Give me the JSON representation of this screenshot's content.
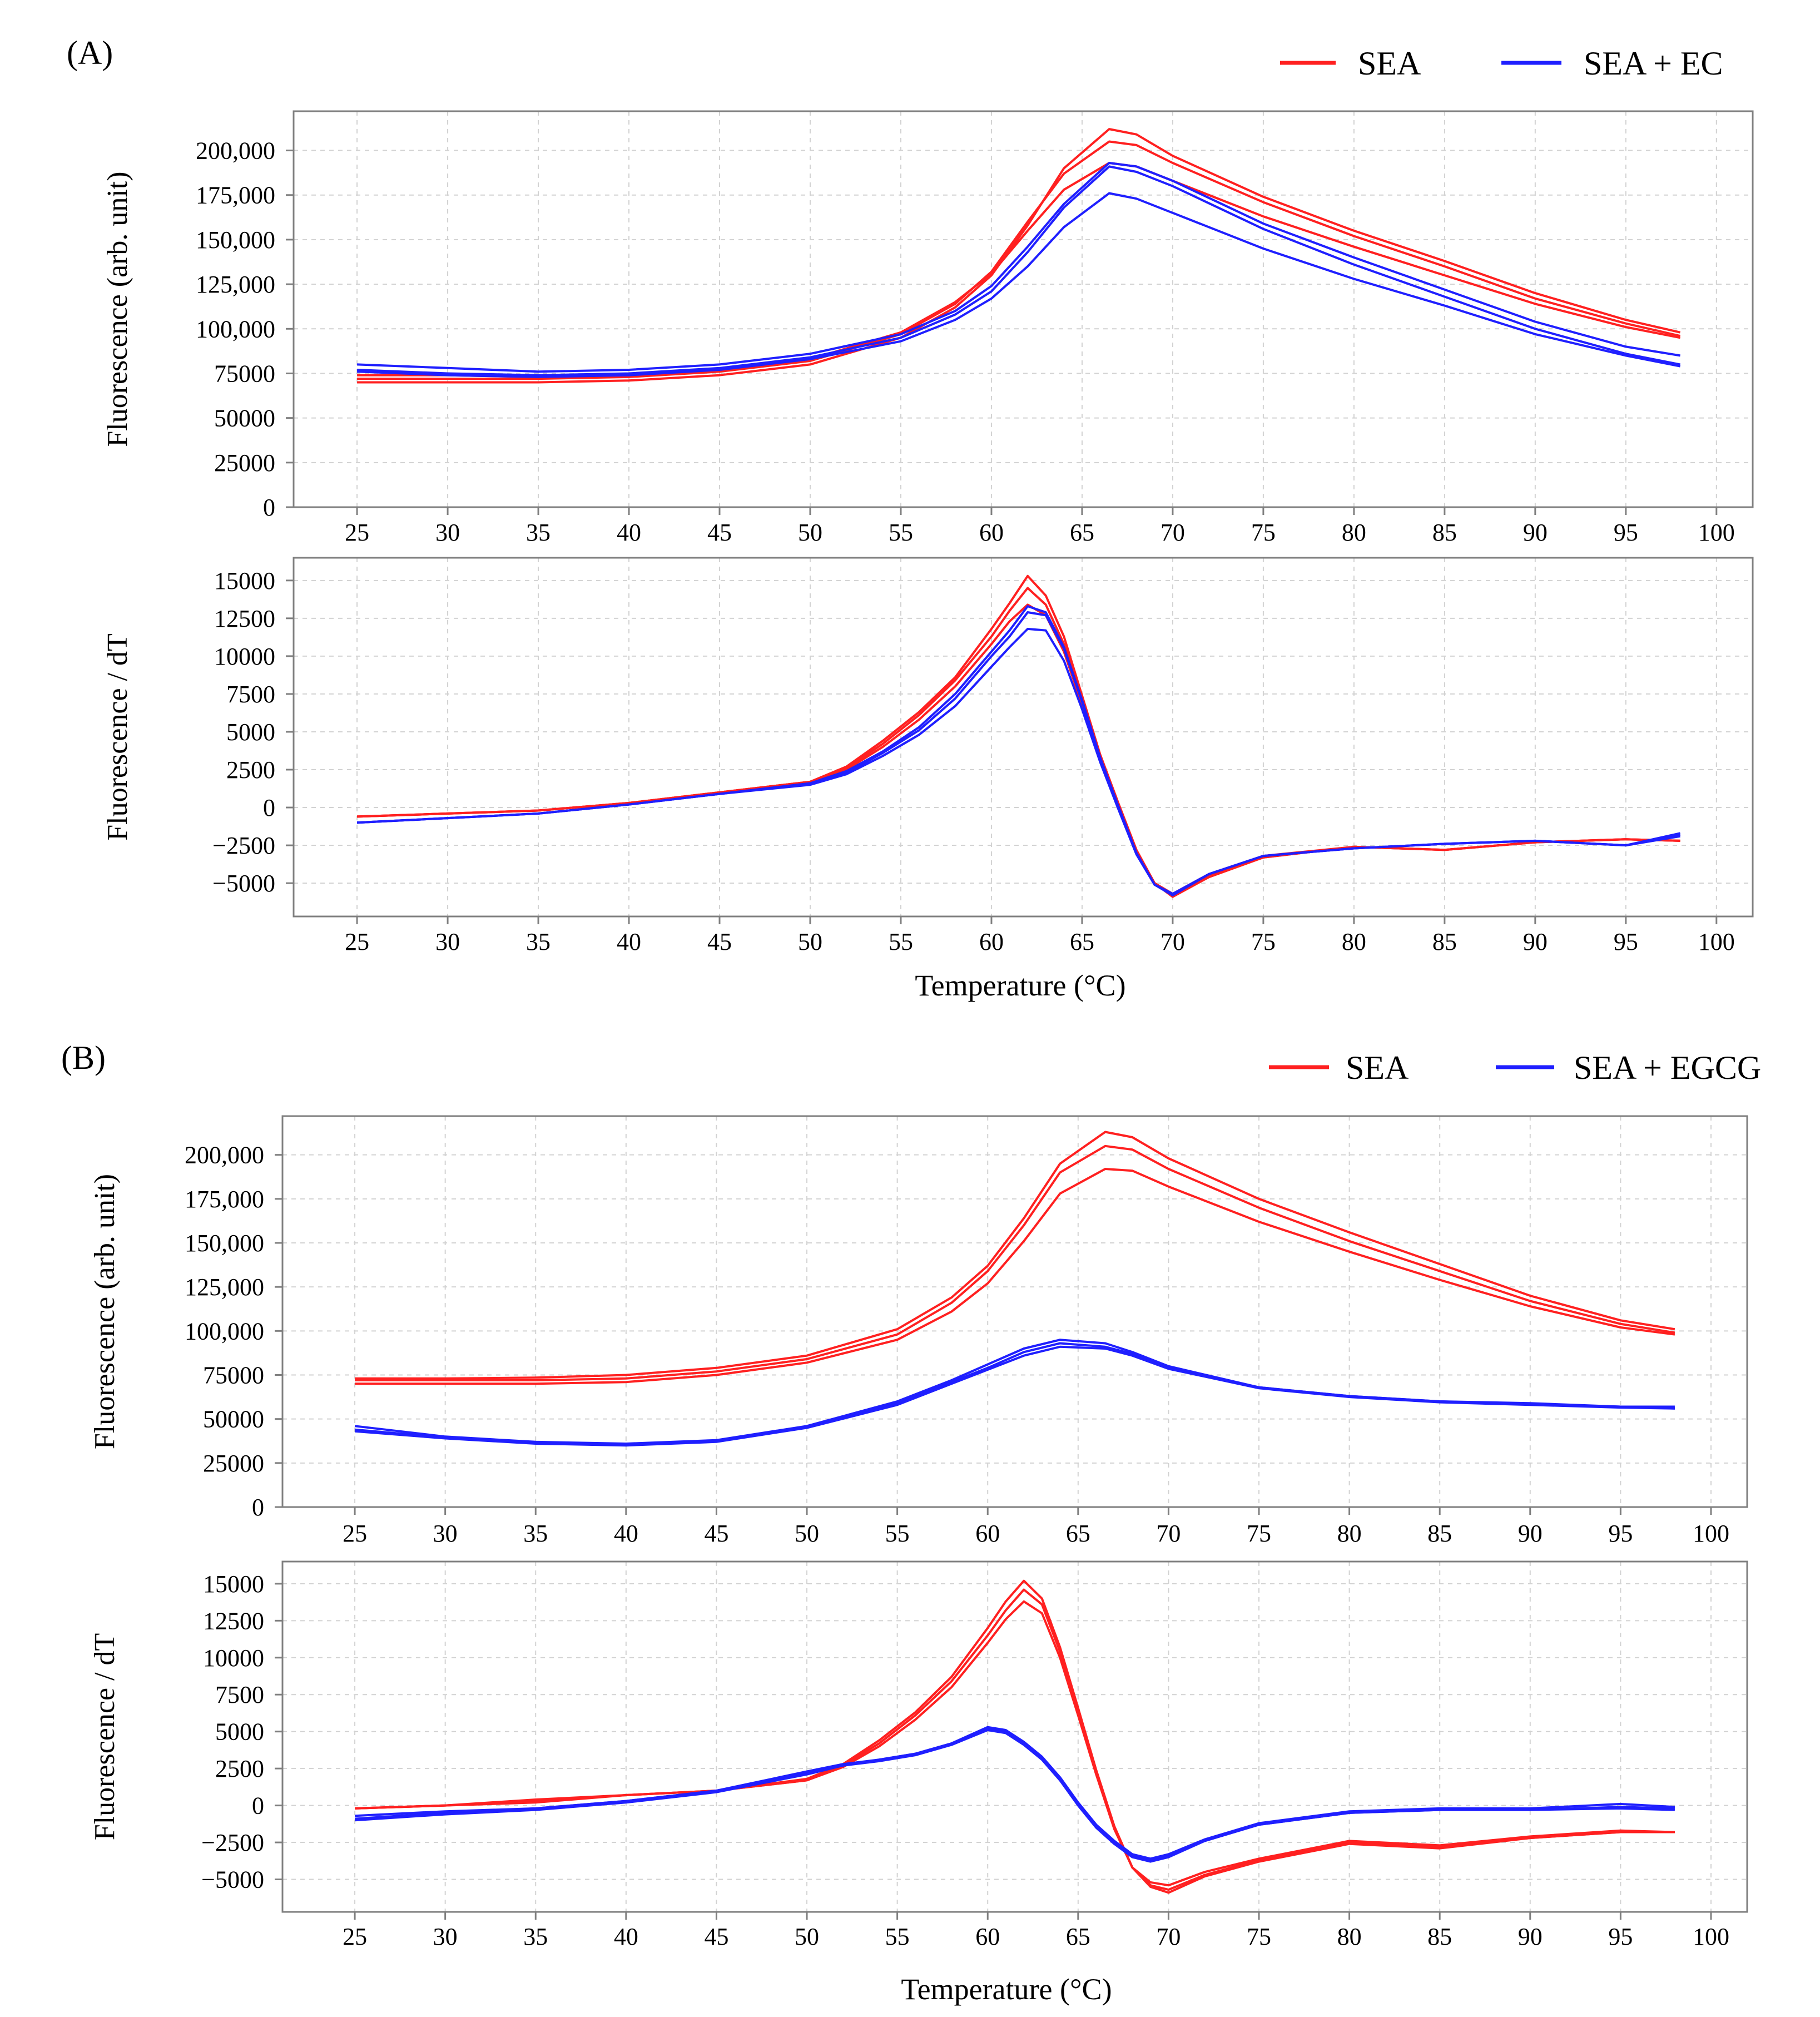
{
  "figure": {
    "panels": [
      {
        "label": "(A)",
        "legend": [
          {
            "name": "SEA",
            "color": "#ff2020"
          },
          {
            "name": "SEA + EC",
            "color": "#1f1fff"
          }
        ],
        "xlabel": "Temperature (°C)"
      },
      {
        "label": "(B)",
        "legend": [
          {
            "name": "SEA",
            "color": "#ff2020"
          },
          {
            "name": "SEA + EGCG",
            "color": "#1f1fff"
          }
        ],
        "xlabel": "Temperature (°C)"
      }
    ]
  },
  "chart_data": [
    {
      "id": "A-melt",
      "type": "line",
      "title": "",
      "xlabel": "",
      "ylabel": "Fluorescence (arb. unit)",
      "xlim": [
        21.5,
        102
      ],
      "ylim": [
        0,
        222000
      ],
      "x_ticks": [
        25,
        30,
        35,
        40,
        45,
        50,
        55,
        60,
        65,
        70,
        75,
        80,
        85,
        90,
        95,
        100
      ],
      "y_ticks": [
        0,
        25000,
        50000,
        75000,
        100000,
        125000,
        150000,
        175000,
        200000
      ],
      "y_tick_labels": [
        "0",
        "25000",
        "50000",
        "75000",
        "100,000",
        "125,000",
        "150,000",
        "175,000",
        "200,000"
      ],
      "x": [
        25,
        30,
        35,
        40,
        45,
        50,
        55,
        58,
        60,
        62,
        64,
        66.5,
        68,
        70,
        75,
        80,
        85,
        90,
        95,
        98
      ],
      "series": [
        {
          "name": "SEA",
          "color": "#ff2020",
          "values": [
            70000,
            70000,
            70000,
            71000,
            74000,
            80000,
            95000,
            112000,
            130000,
            158000,
            190000,
            212000,
            209000,
            197000,
            174000,
            155000,
            138000,
            120000,
            105000,
            98000
          ]
        },
        {
          "name": "SEA",
          "color": "#ff2020",
          "values": [
            72000,
            72000,
            72000,
            73000,
            76000,
            82000,
            97000,
            114000,
            132000,
            160000,
            187000,
            205000,
            203000,
            193000,
            171000,
            152000,
            135000,
            117000,
            103000,
            96000
          ]
        },
        {
          "name": "SEA",
          "color": "#ff2020",
          "values": [
            74000,
            74000,
            73000,
            74000,
            77000,
            83000,
            98000,
            115000,
            131000,
            155000,
            178000,
            193000,
            191000,
            183000,
            163000,
            146000,
            130000,
            114000,
            101000,
            95000
          ]
        },
        {
          "name": "SEA + EC",
          "color": "#1f1fff",
          "values": [
            80000,
            78000,
            76000,
            77000,
            80000,
            86000,
            97000,
            110000,
            124000,
            146000,
            170000,
            193000,
            191000,
            183000,
            159000,
            140000,
            122000,
            104000,
            90000,
            85000
          ]
        },
        {
          "name": "SEA + EC",
          "color": "#1f1fff",
          "values": [
            77000,
            75000,
            74000,
            75000,
            78000,
            84000,
            95000,
            108000,
            121000,
            143000,
            168000,
            191000,
            188000,
            180000,
            156000,
            136000,
            118000,
            100000,
            86000,
            80000
          ]
        },
        {
          "name": "SEA + EC",
          "color": "#1f1fff",
          "values": [
            76000,
            74000,
            73000,
            74000,
            77000,
            83000,
            93000,
            105000,
            117000,
            135000,
            157000,
            176000,
            173000,
            165000,
            145000,
            128000,
            113000,
            97000,
            85000,
            79000
          ]
        }
      ]
    },
    {
      "id": "A-derivative",
      "type": "line",
      "title": "",
      "xlabel": "Temperature (°C)",
      "ylabel": "Fluorescence / dT",
      "xlim": [
        21.5,
        102
      ],
      "ylim": [
        -7200,
        16500
      ],
      "x_ticks": [
        25,
        30,
        35,
        40,
        45,
        50,
        55,
        60,
        65,
        70,
        75,
        80,
        85,
        90,
        95,
        100
      ],
      "y_ticks": [
        -5000,
        -2500,
        0,
        2500,
        5000,
        7500,
        10000,
        12500,
        15000
      ],
      "y_tick_labels": [
        "−5000",
        "−2500",
        "0",
        "2500",
        "5000",
        "7500",
        "10000",
        "12500",
        "15000"
      ],
      "x": [
        25,
        30,
        35,
        40,
        45,
        50,
        52,
        54,
        56,
        58,
        60,
        61,
        62,
        63,
        64,
        65,
        66,
        67,
        68,
        69,
        70,
        72,
        75,
        80,
        85,
        90,
        95,
        98
      ],
      "series": [
        {
          "name": "SEA",
          "color": "#ff2020",
          "values": [
            -600,
            -400,
            -200,
            300,
            1000,
            1700,
            2700,
            4400,
            6300,
            8600,
            11800,
            13500,
            15300,
            14000,
            11300,
            7400,
            3500,
            300,
            -2800,
            -5000,
            -5900,
            -4600,
            -3300,
            -2600,
            -2800,
            -2300,
            -2100,
            -2200
          ]
        },
        {
          "name": "SEA",
          "color": "#ff2020",
          "values": [
            -600,
            -400,
            -200,
            300,
            1000,
            1700,
            2600,
            4200,
            6100,
            8400,
            11300,
            13000,
            14500,
            13400,
            10800,
            7100,
            3300,
            200,
            -2900,
            -5000,
            -5800,
            -4500,
            -3300,
            -2600,
            -2800,
            -2300,
            -2100,
            -2200
          ]
        },
        {
          "name": "SEA",
          "color": "#ff2020",
          "values": [
            -600,
            -400,
            -200,
            300,
            1000,
            1700,
            2500,
            4000,
            5800,
            8000,
            10800,
            12300,
            13400,
            12700,
            10300,
            6800,
            3100,
            100,
            -2900,
            -5000,
            -5700,
            -4400,
            -3200,
            -2600,
            -2800,
            -2300,
            -2100,
            -2200
          ]
        },
        {
          "name": "SEA + EC",
          "color": "#1f1fff",
          "values": [
            -1000,
            -700,
            -400,
            200,
            900,
            1600,
            2400,
            3700,
            5300,
            7500,
            10300,
            11700,
            13300,
            12900,
            10600,
            7100,
            3300,
            100,
            -3000,
            -5100,
            -5800,
            -4400,
            -3200,
            -2700,
            -2400,
            -2200,
            -2500,
            -1700
          ]
        },
        {
          "name": "SEA + EC",
          "color": "#1f1fff",
          "values": [
            -1000,
            -700,
            -400,
            200,
            900,
            1600,
            2300,
            3600,
            5100,
            7200,
            10000,
            11300,
            12900,
            12700,
            10500,
            7000,
            3200,
            0,
            -3000,
            -5100,
            -5800,
            -4400,
            -3200,
            -2700,
            -2400,
            -2200,
            -2500,
            -1800
          ]
        },
        {
          "name": "SEA + EC",
          "color": "#1f1fff",
          "values": [
            -1000,
            -700,
            -400,
            200,
            900,
            1500,
            2200,
            3400,
            4800,
            6700,
            9300,
            10600,
            11800,
            11700,
            9700,
            6500,
            3000,
            -100,
            -3100,
            -5100,
            -5700,
            -4400,
            -3200,
            -2700,
            -2400,
            -2200,
            -2500,
            -1900
          ]
        }
      ]
    },
    {
      "id": "B-melt",
      "type": "line",
      "title": "",
      "xlabel": "",
      "ylabel": "Fluorescence (arb. unit)",
      "xlim": [
        21,
        102
      ],
      "ylim": [
        0,
        222000
      ],
      "x_ticks": [
        25,
        30,
        35,
        40,
        45,
        50,
        55,
        60,
        65,
        70,
        75,
        80,
        85,
        90,
        95,
        100
      ],
      "y_ticks": [
        0,
        25000,
        50000,
        75000,
        100000,
        125000,
        150000,
        175000,
        200000
      ],
      "y_tick_labels": [
        "0",
        "25000",
        "50000",
        "75000",
        "100,000",
        "125,000",
        "150,000",
        "175,000",
        "200,000"
      ],
      "x": [
        25,
        30,
        35,
        40,
        45,
        50,
        55,
        58,
        60,
        62,
        64,
        66.5,
        68,
        70,
        75,
        80,
        85,
        90,
        95,
        98
      ],
      "series": [
        {
          "name": "SEA",
          "color": "#ff2020",
          "values": [
            73000,
            73000,
            73500,
            75000,
            79000,
            86000,
            101000,
            119000,
            137000,
            164000,
            195000,
            213000,
            210000,
            198000,
            175000,
            156000,
            138000,
            120000,
            106000,
            101000
          ]
        },
        {
          "name": "SEA",
          "color": "#ff2020",
          "values": [
            72000,
            72000,
            72000,
            73000,
            77000,
            84000,
            98000,
            116000,
            134000,
            160000,
            190000,
            205000,
            203000,
            192000,
            170000,
            151000,
            134000,
            117000,
            104000,
            99000
          ]
        },
        {
          "name": "SEA",
          "color": "#ff2020",
          "values": [
            70000,
            70000,
            70000,
            71000,
            75000,
            82000,
            95000,
            111000,
            127000,
            151000,
            178000,
            192000,
            191000,
            182000,
            162000,
            145000,
            129000,
            114000,
            102000,
            98000
          ]
        },
        {
          "name": "SEA + EGCG",
          "color": "#1f1fff",
          "values": [
            46000,
            40000,
            37000,
            36000,
            38000,
            46000,
            60000,
            72000,
            81000,
            90000,
            95000,
            93000,
            88000,
            80000,
            68000,
            63000,
            60000,
            59000,
            57000,
            57000
          ]
        },
        {
          "name": "SEA + EGCG",
          "color": "#1f1fff",
          "values": [
            44000,
            39500,
            36500,
            35500,
            37500,
            45500,
            59000,
            71000,
            79000,
            88000,
            93000,
            91000,
            87000,
            79000,
            68000,
            63000,
            60000,
            58500,
            57000,
            56000
          ]
        },
        {
          "name": "SEA + EGCG",
          "color": "#1f1fff",
          "values": [
            43000,
            39000,
            36000,
            35000,
            37000,
            45000,
            58000,
            70000,
            78000,
            86000,
            91000,
            90000,
            86000,
            78500,
            67500,
            62500,
            59500,
            58000,
            56500,
            56000
          ]
        }
      ]
    },
    {
      "id": "B-derivative",
      "type": "line",
      "title": "",
      "xlabel": "Temperature (°C)",
      "ylabel": "Fluorescence / dT",
      "xlim": [
        21,
        102
      ],
      "ylim": [
        -7200,
        16500
      ],
      "x_ticks": [
        25,
        30,
        35,
        40,
        45,
        50,
        55,
        60,
        65,
        70,
        75,
        80,
        85,
        90,
        95,
        100
      ],
      "y_ticks": [
        -5000,
        -2500,
        0,
        2500,
        5000,
        7500,
        10000,
        12500,
        15000
      ],
      "y_tick_labels": [
        "−5000",
        "−2500",
        "0",
        "2500",
        "5000",
        "7500",
        "10000",
        "12500",
        "15000"
      ],
      "x": [
        25,
        30,
        35,
        40,
        45,
        50,
        52,
        54,
        56,
        58,
        60,
        61,
        62,
        63,
        64,
        65,
        66,
        67,
        68,
        69,
        70,
        72,
        75,
        80,
        85,
        90,
        95,
        98
      ],
      "series": [
        {
          "name": "SEA",
          "color": "#ff2020",
          "values": [
            -200,
            0,
            400,
            700,
            1000,
            1800,
            2800,
            4400,
            6300,
            8700,
            12000,
            13800,
            15200,
            14000,
            10700,
            6600,
            2400,
            -1400,
            -4200,
            -5500,
            -5900,
            -4800,
            -3800,
            -2600,
            -2900,
            -2200,
            -1800,
            -1800
          ]
        },
        {
          "name": "SEA",
          "color": "#ff2020",
          "values": [
            -200,
            0,
            300,
            700,
            1000,
            1700,
            2700,
            4200,
            6100,
            8400,
            11500,
            13200,
            14600,
            13600,
            10400,
            6400,
            2300,
            -1500,
            -4200,
            -5400,
            -5700,
            -4700,
            -3700,
            -2500,
            -2800,
            -2200,
            -1800,
            -1800
          ]
        },
        {
          "name": "SEA",
          "color": "#ff2020",
          "values": [
            -200,
            0,
            200,
            700,
            1000,
            1700,
            2600,
            4000,
            5800,
            8000,
            11000,
            12600,
            13800,
            13000,
            10000,
            6100,
            2100,
            -1600,
            -4200,
            -5200,
            -5400,
            -4500,
            -3600,
            -2400,
            -2700,
            -2100,
            -1700,
            -1800
          ]
        },
        {
          "name": "SEA + EGCG",
          "color": "#1f1fff",
          "values": [
            -700,
            -400,
            -200,
            300,
            1000,
            2300,
            2800,
            3100,
            3500,
            4200,
            5300,
            5100,
            4300,
            3300,
            1900,
            200,
            -1300,
            -2400,
            -3300,
            -3600,
            -3300,
            -2300,
            -1200,
            -400,
            -200,
            -200,
            100,
            -100
          ]
        },
        {
          "name": "SEA + EGCG",
          "color": "#1f1fff",
          "values": [
            -900,
            -500,
            -200,
            300,
            1000,
            2200,
            2700,
            3100,
            3500,
            4200,
            5200,
            5000,
            4200,
            3200,
            1800,
            100,
            -1400,
            -2500,
            -3400,
            -3700,
            -3400,
            -2400,
            -1300,
            -500,
            -300,
            -300,
            -100,
            -200
          ]
        },
        {
          "name": "SEA + EGCG",
          "color": "#1f1fff",
          "values": [
            -1000,
            -600,
            -300,
            200,
            900,
            2100,
            2700,
            3000,
            3400,
            4100,
            5100,
            4900,
            4100,
            3100,
            1700,
            0,
            -1500,
            -2600,
            -3500,
            -3800,
            -3500,
            -2400,
            -1300,
            -500,
            -300,
            -300,
            -200,
            -300
          ]
        }
      ]
    }
  ]
}
